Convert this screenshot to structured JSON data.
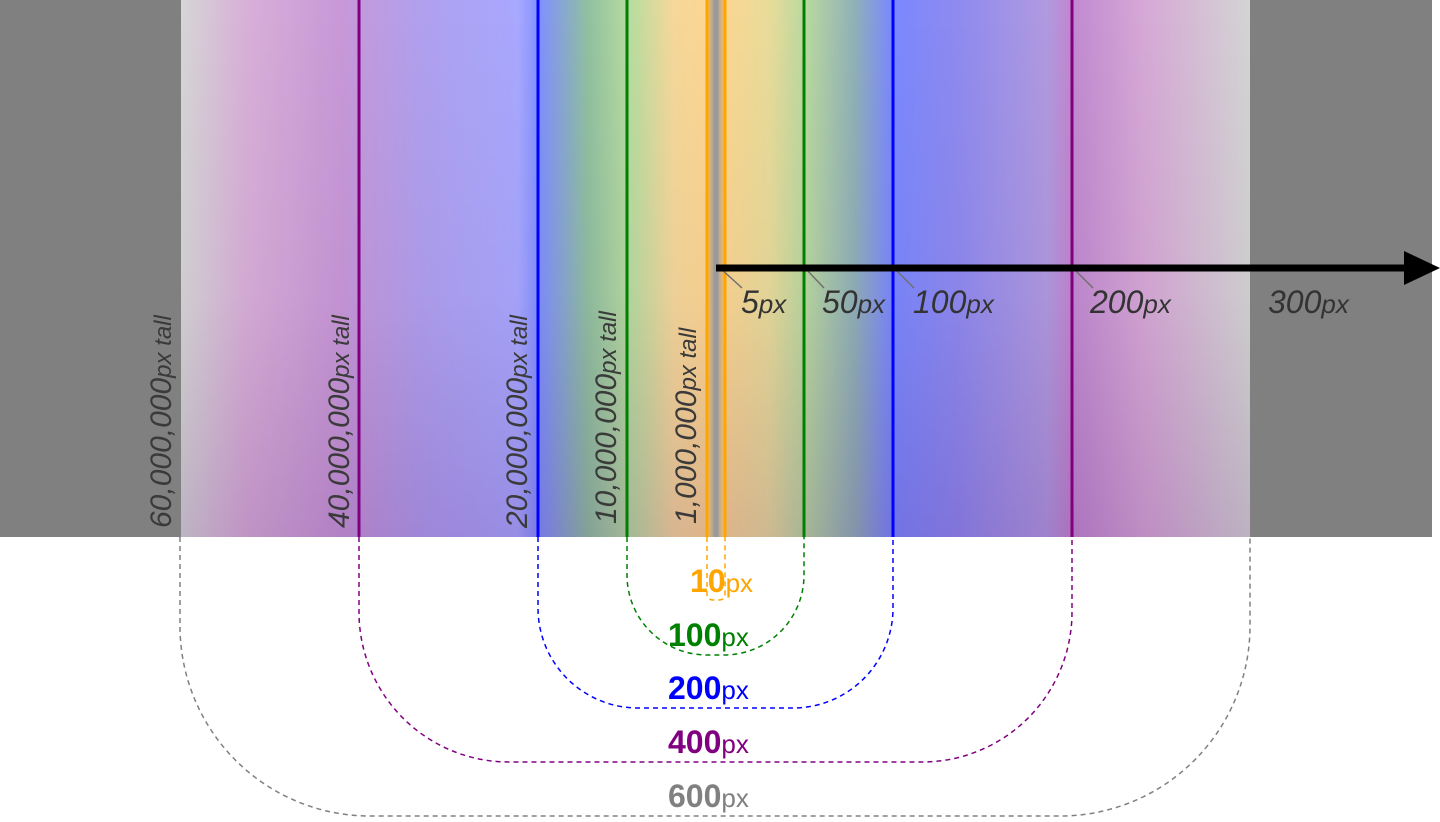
{
  "colors": {
    "outer": "#808080",
    "band_600": "#808080",
    "band_400": "#800080",
    "band_200": "#0000ff",
    "band_100": "#008000",
    "band_10": "#ffa500",
    "arrow": "#000000"
  },
  "height_labels": [
    {
      "number": "60,000,000",
      "unit": "px tall"
    },
    {
      "number": "40,000,000",
      "unit": "px tall"
    },
    {
      "number": "20,000,000",
      "unit": "px tall"
    },
    {
      "number": "10,000,000",
      "unit": "px tall"
    },
    {
      "number": "1,000,000",
      "unit": "px tall"
    }
  ],
  "scale_labels": [
    {
      "number": "5",
      "unit": "px"
    },
    {
      "number": "50",
      "unit": "px"
    },
    {
      "number": "100",
      "unit": "px"
    },
    {
      "number": "200",
      "unit": "px"
    },
    {
      "number": "300",
      "unit": "px"
    }
  ],
  "width_labels": [
    {
      "number": "10",
      "unit": "px",
      "color": "#ffa500"
    },
    {
      "number": "100",
      "unit": "px",
      "color": "#008000"
    },
    {
      "number": "200",
      "unit": "px",
      "color": "#0000ff"
    },
    {
      "number": "400",
      "unit": "px",
      "color": "#800080"
    },
    {
      "number": "600",
      "unit": "px",
      "color": "#808080"
    }
  ]
}
